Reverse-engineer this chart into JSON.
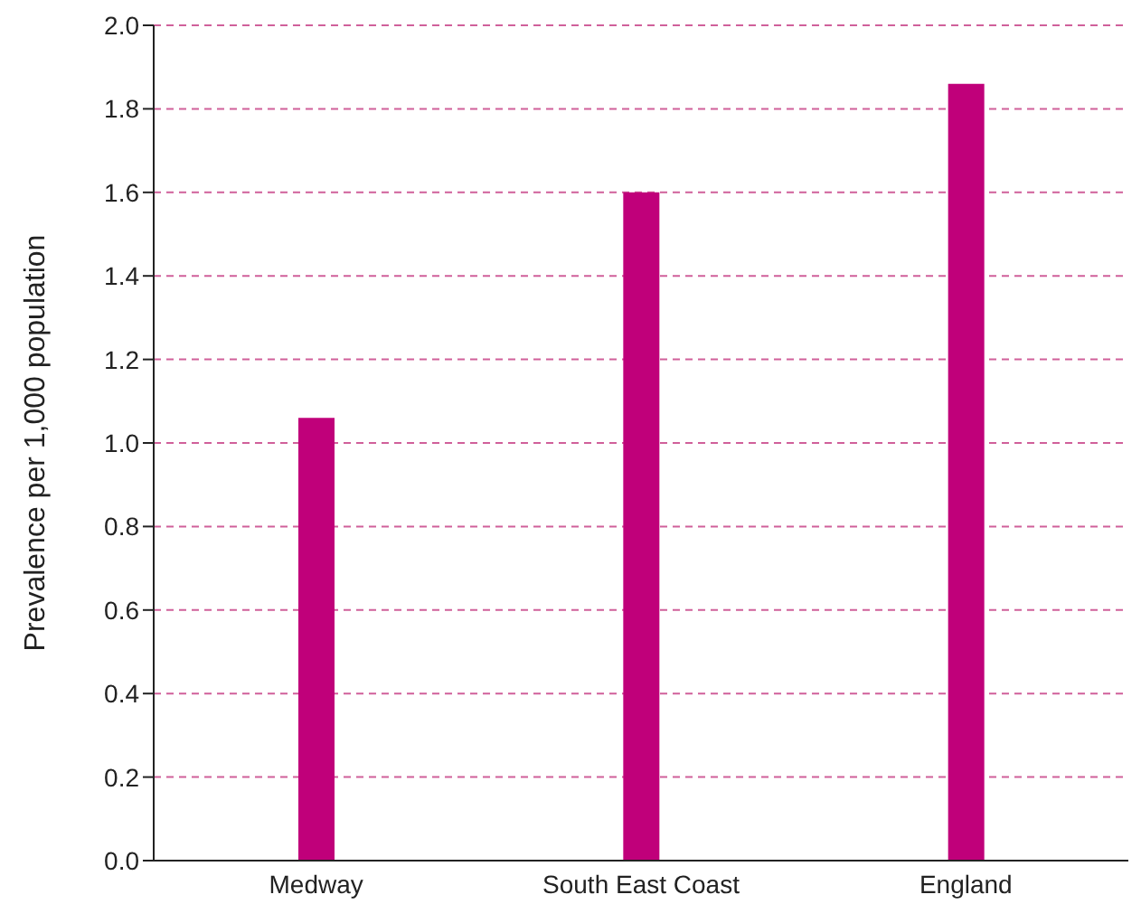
{
  "chart_data": {
    "type": "bar",
    "ylabel": "Prevalence per 1,000 population",
    "categories": [
      "Medway",
      "South East Coast",
      "England"
    ],
    "values": [
      1.06,
      1.6,
      1.86
    ],
    "color": "#c0007a",
    "ylim": [
      0,
      2
    ],
    "yticks": [
      {
        "value": 0,
        "label": "0.0"
      },
      {
        "value": 0.2,
        "label": "0.2"
      },
      {
        "value": 0.4,
        "label": "0.4"
      },
      {
        "value": 0.6,
        "label": "0.6"
      },
      {
        "value": 0.8,
        "label": "0.8"
      },
      {
        "value": 1,
        "label": "1.0"
      },
      {
        "value": 1.2,
        "label": "1.2"
      },
      {
        "value": 1.4,
        "label": "1.4"
      },
      {
        "value": 1.6,
        "label": "1.6"
      },
      {
        "value": 1.8,
        "label": "1.8"
      },
      {
        "value": 2,
        "label": "2.0"
      }
    ],
    "grid": "y"
  }
}
